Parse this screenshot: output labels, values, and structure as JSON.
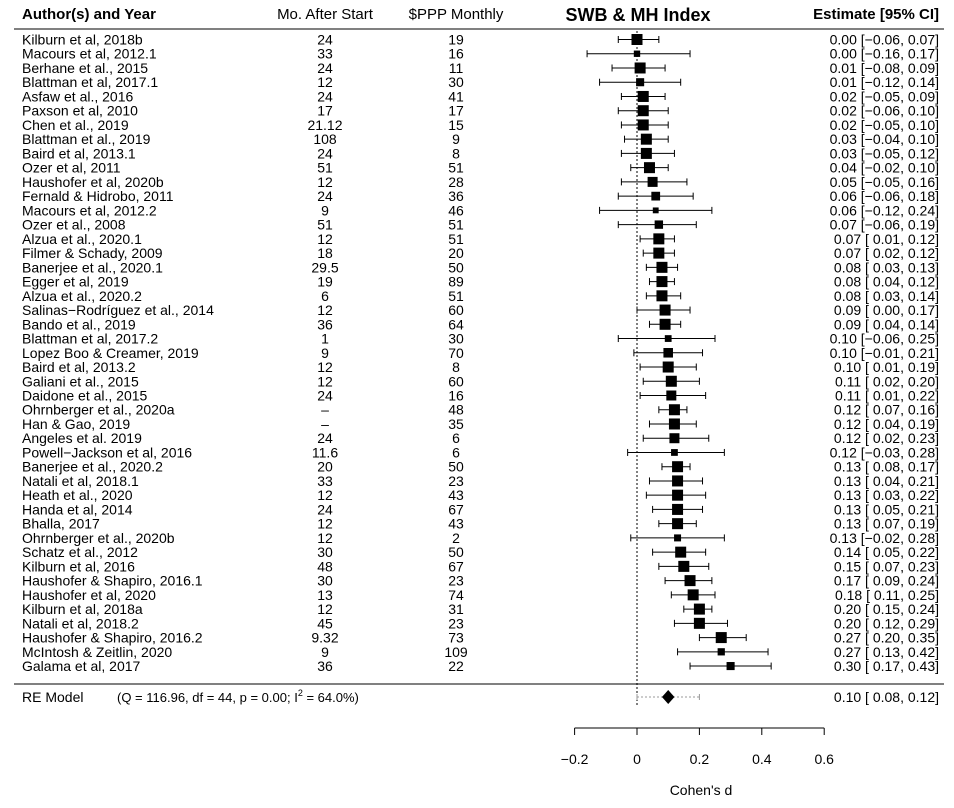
{
  "chart_data": {
    "type": "forest",
    "title": "SWB & MH Index",
    "columns": {
      "study": "Author(s) and Year",
      "months": "Mo. After Start",
      "ppp": "$PPP Monthly",
      "estimate": "Estimate [95% CI]"
    },
    "xlabel": "Cohen's d",
    "xlim": [
      -0.2,
      0.6
    ],
    "xticks": [
      -0.2,
      0,
      0.2,
      0.4,
      0.6
    ],
    "xtick_labels": [
      "−0.2",
      "0",
      "0.2",
      "0.4",
      "0.6"
    ],
    "reference_line": 0,
    "studies": [
      {
        "name": "Kilburn et al, 2018b",
        "months": "24",
        "ppp": "19",
        "est": 0.0,
        "lo": -0.06,
        "hi": 0.07,
        "label": "0.00 [−0.06, 0.07]"
      },
      {
        "name": "Macours et al, 2012.1",
        "months": "33",
        "ppp": "16",
        "est": 0.0,
        "lo": -0.16,
        "hi": 0.17,
        "label": "0.00 [−0.16, 0.17]"
      },
      {
        "name": "Berhane et al., 2015",
        "months": "24",
        "ppp": "11",
        "est": 0.01,
        "lo": -0.08,
        "hi": 0.09,
        "label": "0.01 [−0.08, 0.09]"
      },
      {
        "name": "Blattman et al, 2017.1",
        "months": "12",
        "ppp": "30",
        "est": 0.01,
        "lo": -0.12,
        "hi": 0.14,
        "label": "0.01 [−0.12, 0.14]"
      },
      {
        "name": "Asfaw et al., 2016",
        "months": "24",
        "ppp": "41",
        "est": 0.02,
        "lo": -0.05,
        "hi": 0.09,
        "label": "0.02 [−0.05, 0.09]"
      },
      {
        "name": "Paxson et al, 2010",
        "months": "17",
        "ppp": "17",
        "est": 0.02,
        "lo": -0.06,
        "hi": 0.1,
        "label": "0.02 [−0.06, 0.10]"
      },
      {
        "name": "Chen  et al., 2019",
        "months": "21.12",
        "ppp": "15",
        "est": 0.02,
        "lo": -0.05,
        "hi": 0.1,
        "label": "0.02 [−0.05, 0.10]"
      },
      {
        "name": "Blattman et al., 2019",
        "months": "108",
        "ppp": "9",
        "est": 0.03,
        "lo": -0.04,
        "hi": 0.1,
        "label": "0.03 [−0.04, 0.10]"
      },
      {
        "name": "Baird et al, 2013.1",
        "months": "24",
        "ppp": "8",
        "est": 0.03,
        "lo": -0.05,
        "hi": 0.12,
        "label": "0.03 [−0.05, 0.12]"
      },
      {
        "name": "Ozer et al, 2011",
        "months": "51",
        "ppp": "51",
        "est": 0.04,
        "lo": -0.02,
        "hi": 0.1,
        "label": "0.04 [−0.02, 0.10]"
      },
      {
        "name": "Haushofer et al, 2020b",
        "months": "12",
        "ppp": "28",
        "est": 0.05,
        "lo": -0.05,
        "hi": 0.16,
        "label": "0.05 [−0.05, 0.16]"
      },
      {
        "name": "Fernald & Hidrobo, 2011",
        "months": "24",
        "ppp": "36",
        "est": 0.06,
        "lo": -0.06,
        "hi": 0.18,
        "label": "0.06 [−0.06, 0.18]"
      },
      {
        "name": "Macours et al, 2012.2",
        "months": "9",
        "ppp": "46",
        "est": 0.06,
        "lo": -0.12,
        "hi": 0.24,
        "label": "0.06 [−0.12, 0.24]"
      },
      {
        "name": "Ozer et al., 2008",
        "months": "51",
        "ppp": "51",
        "est": 0.07,
        "lo": -0.06,
        "hi": 0.19,
        "label": "0.07 [−0.06, 0.19]"
      },
      {
        "name": "Alzua et al., 2020.1",
        "months": "12",
        "ppp": "51",
        "est": 0.07,
        "lo": 0.01,
        "hi": 0.12,
        "label": "0.07 [ 0.01, 0.12]"
      },
      {
        "name": "Filmer & Schady, 2009",
        "months": "18",
        "ppp": "20",
        "est": 0.07,
        "lo": 0.02,
        "hi": 0.12,
        "label": "0.07 [ 0.02, 0.12]"
      },
      {
        "name": "Banerjee et al., 2020.1",
        "months": "29.5",
        "ppp": "50",
        "est": 0.08,
        "lo": 0.03,
        "hi": 0.13,
        "label": "0.08 [ 0.03, 0.13]"
      },
      {
        "name": "Egger et al, 2019",
        "months": "19",
        "ppp": "89",
        "est": 0.08,
        "lo": 0.04,
        "hi": 0.12,
        "label": "0.08 [ 0.04, 0.12]"
      },
      {
        "name": "Alzua et al., 2020.2",
        "months": "6",
        "ppp": "51",
        "est": 0.08,
        "lo": 0.03,
        "hi": 0.14,
        "label": "0.08 [ 0.03, 0.14]"
      },
      {
        "name": "Salinas−Rodríguez et al., 2014",
        "months": "12",
        "ppp": "60",
        "est": 0.09,
        "lo": 0.0,
        "hi": 0.17,
        "label": "0.09 [ 0.00, 0.17]"
      },
      {
        "name": "Bando et al., 2019",
        "months": "36",
        "ppp": "64",
        "est": 0.09,
        "lo": 0.04,
        "hi": 0.14,
        "label": "0.09 [ 0.04, 0.14]"
      },
      {
        "name": "Blattman et al, 2017.2",
        "months": "1",
        "ppp": "30",
        "est": 0.1,
        "lo": -0.06,
        "hi": 0.25,
        "label": "0.10 [−0.06, 0.25]"
      },
      {
        "name": "Lopez Boo & Creamer, 2019",
        "months": "9",
        "ppp": "70",
        "est": 0.1,
        "lo": -0.01,
        "hi": 0.21,
        "label": "0.10 [−0.01, 0.21]"
      },
      {
        "name": "Baird et al, 2013.2",
        "months": "12",
        "ppp": "8",
        "est": 0.1,
        "lo": 0.01,
        "hi": 0.19,
        "label": "0.10 [ 0.01, 0.19]"
      },
      {
        "name": "Galiani et al., 2015",
        "months": "12",
        "ppp": "60",
        "est": 0.11,
        "lo": 0.02,
        "hi": 0.2,
        "label": "0.11 [ 0.02, 0.20]"
      },
      {
        "name": "Daidone et al., 2015",
        "months": "24",
        "ppp": "16",
        "est": 0.11,
        "lo": 0.01,
        "hi": 0.22,
        "label": "0.11 [ 0.01, 0.22]"
      },
      {
        "name": "Ohrnberger et al., 2020a",
        "months": "–",
        "ppp": "48",
        "est": 0.12,
        "lo": 0.07,
        "hi": 0.16,
        "label": "0.12 [ 0.07, 0.16]"
      },
      {
        "name": "Han & Gao, 2019",
        "months": "–",
        "ppp": "35",
        "est": 0.12,
        "lo": 0.04,
        "hi": 0.19,
        "label": "0.12 [ 0.04, 0.19]"
      },
      {
        "name": "Angeles et al. 2019",
        "months": "24",
        "ppp": "6",
        "est": 0.12,
        "lo": 0.02,
        "hi": 0.23,
        "label": "0.12 [ 0.02, 0.23]"
      },
      {
        "name": "Powell−Jackson et al, 2016",
        "months": "11.6",
        "ppp": "6",
        "est": 0.12,
        "lo": -0.03,
        "hi": 0.28,
        "label": "0.12 [−0.03, 0.28]"
      },
      {
        "name": "Banerjee et al., 2020.2",
        "months": "20",
        "ppp": "50",
        "est": 0.13,
        "lo": 0.08,
        "hi": 0.17,
        "label": "0.13 [ 0.08, 0.17]"
      },
      {
        "name": "Natali et al, 2018.1",
        "months": "33",
        "ppp": "23",
        "est": 0.13,
        "lo": 0.04,
        "hi": 0.21,
        "label": "0.13 [ 0.04, 0.21]"
      },
      {
        "name": "Heath et al., 2020",
        "months": "12",
        "ppp": "43",
        "est": 0.13,
        "lo": 0.03,
        "hi": 0.22,
        "label": "0.13 [ 0.03, 0.22]"
      },
      {
        "name": "Handa et al, 2014",
        "months": "24",
        "ppp": "67",
        "est": 0.13,
        "lo": 0.05,
        "hi": 0.21,
        "label": "0.13 [ 0.05, 0.21]"
      },
      {
        "name": "Bhalla, 2017",
        "months": "12",
        "ppp": "43",
        "est": 0.13,
        "lo": 0.07,
        "hi": 0.19,
        "label": "0.13 [ 0.07, 0.19]"
      },
      {
        "name": "Ohrnberger et al., 2020b",
        "months": "12",
        "ppp": "2",
        "est": 0.13,
        "lo": -0.02,
        "hi": 0.28,
        "label": "0.13 [−0.02, 0.28]"
      },
      {
        "name": "Schatz et al., 2012",
        "months": "30",
        "ppp": "50",
        "est": 0.14,
        "lo": 0.05,
        "hi": 0.22,
        "label": "0.14 [ 0.05, 0.22]"
      },
      {
        "name": "Kilburn et al, 2016",
        "months": "48",
        "ppp": "67",
        "est": 0.15,
        "lo": 0.07,
        "hi": 0.23,
        "label": "0.15 [ 0.07, 0.23]"
      },
      {
        "name": "Haushofer & Shapiro, 2016.1",
        "months": "30",
        "ppp": "23",
        "est": 0.17,
        "lo": 0.09,
        "hi": 0.24,
        "label": "0.17 [ 0.09, 0.24]"
      },
      {
        "name": "Haushofer et al, 2020",
        "months": "13",
        "ppp": "74",
        "est": 0.18,
        "lo": 0.11,
        "hi": 0.25,
        "label": "0.18 [ 0.11, 0.25]"
      },
      {
        "name": "Kilburn et al, 2018a",
        "months": "12",
        "ppp": "31",
        "est": 0.2,
        "lo": 0.15,
        "hi": 0.24,
        "label": "0.20 [ 0.15, 0.24]"
      },
      {
        "name": "Natali et al, 2018.2",
        "months": "45",
        "ppp": "23",
        "est": 0.2,
        "lo": 0.12,
        "hi": 0.29,
        "label": "0.20 [ 0.12, 0.29]"
      },
      {
        "name": "Haushofer & Shapiro, 2016.2",
        "months": "9.32",
        "ppp": "73",
        "est": 0.27,
        "lo": 0.2,
        "hi": 0.35,
        "label": "0.27 [ 0.20, 0.35]"
      },
      {
        "name": "McIntosh & Zeitlin, 2020",
        "months": "9",
        "ppp": "109",
        "est": 0.27,
        "lo": 0.13,
        "hi": 0.42,
        "label": "0.27 [ 0.13, 0.42]"
      },
      {
        "name": "Galama et al, 2017",
        "months": "36",
        "ppp": "22",
        "est": 0.3,
        "lo": 0.17,
        "hi": 0.43,
        "label": "0.30 [ 0.17, 0.43]"
      }
    ],
    "summary": {
      "name": "RE Model",
      "stats": "(Q = 116.96, df = 44, p = 0.00; I",
      "stats_sup": "2",
      "stats_end": " = 64.0%)",
      "est": 0.1,
      "lo": 0.08,
      "hi": 0.12,
      "pi_lo": 0.0,
      "pi_hi": 0.2,
      "label": "0.10 [ 0.08, 0.12]"
    }
  }
}
